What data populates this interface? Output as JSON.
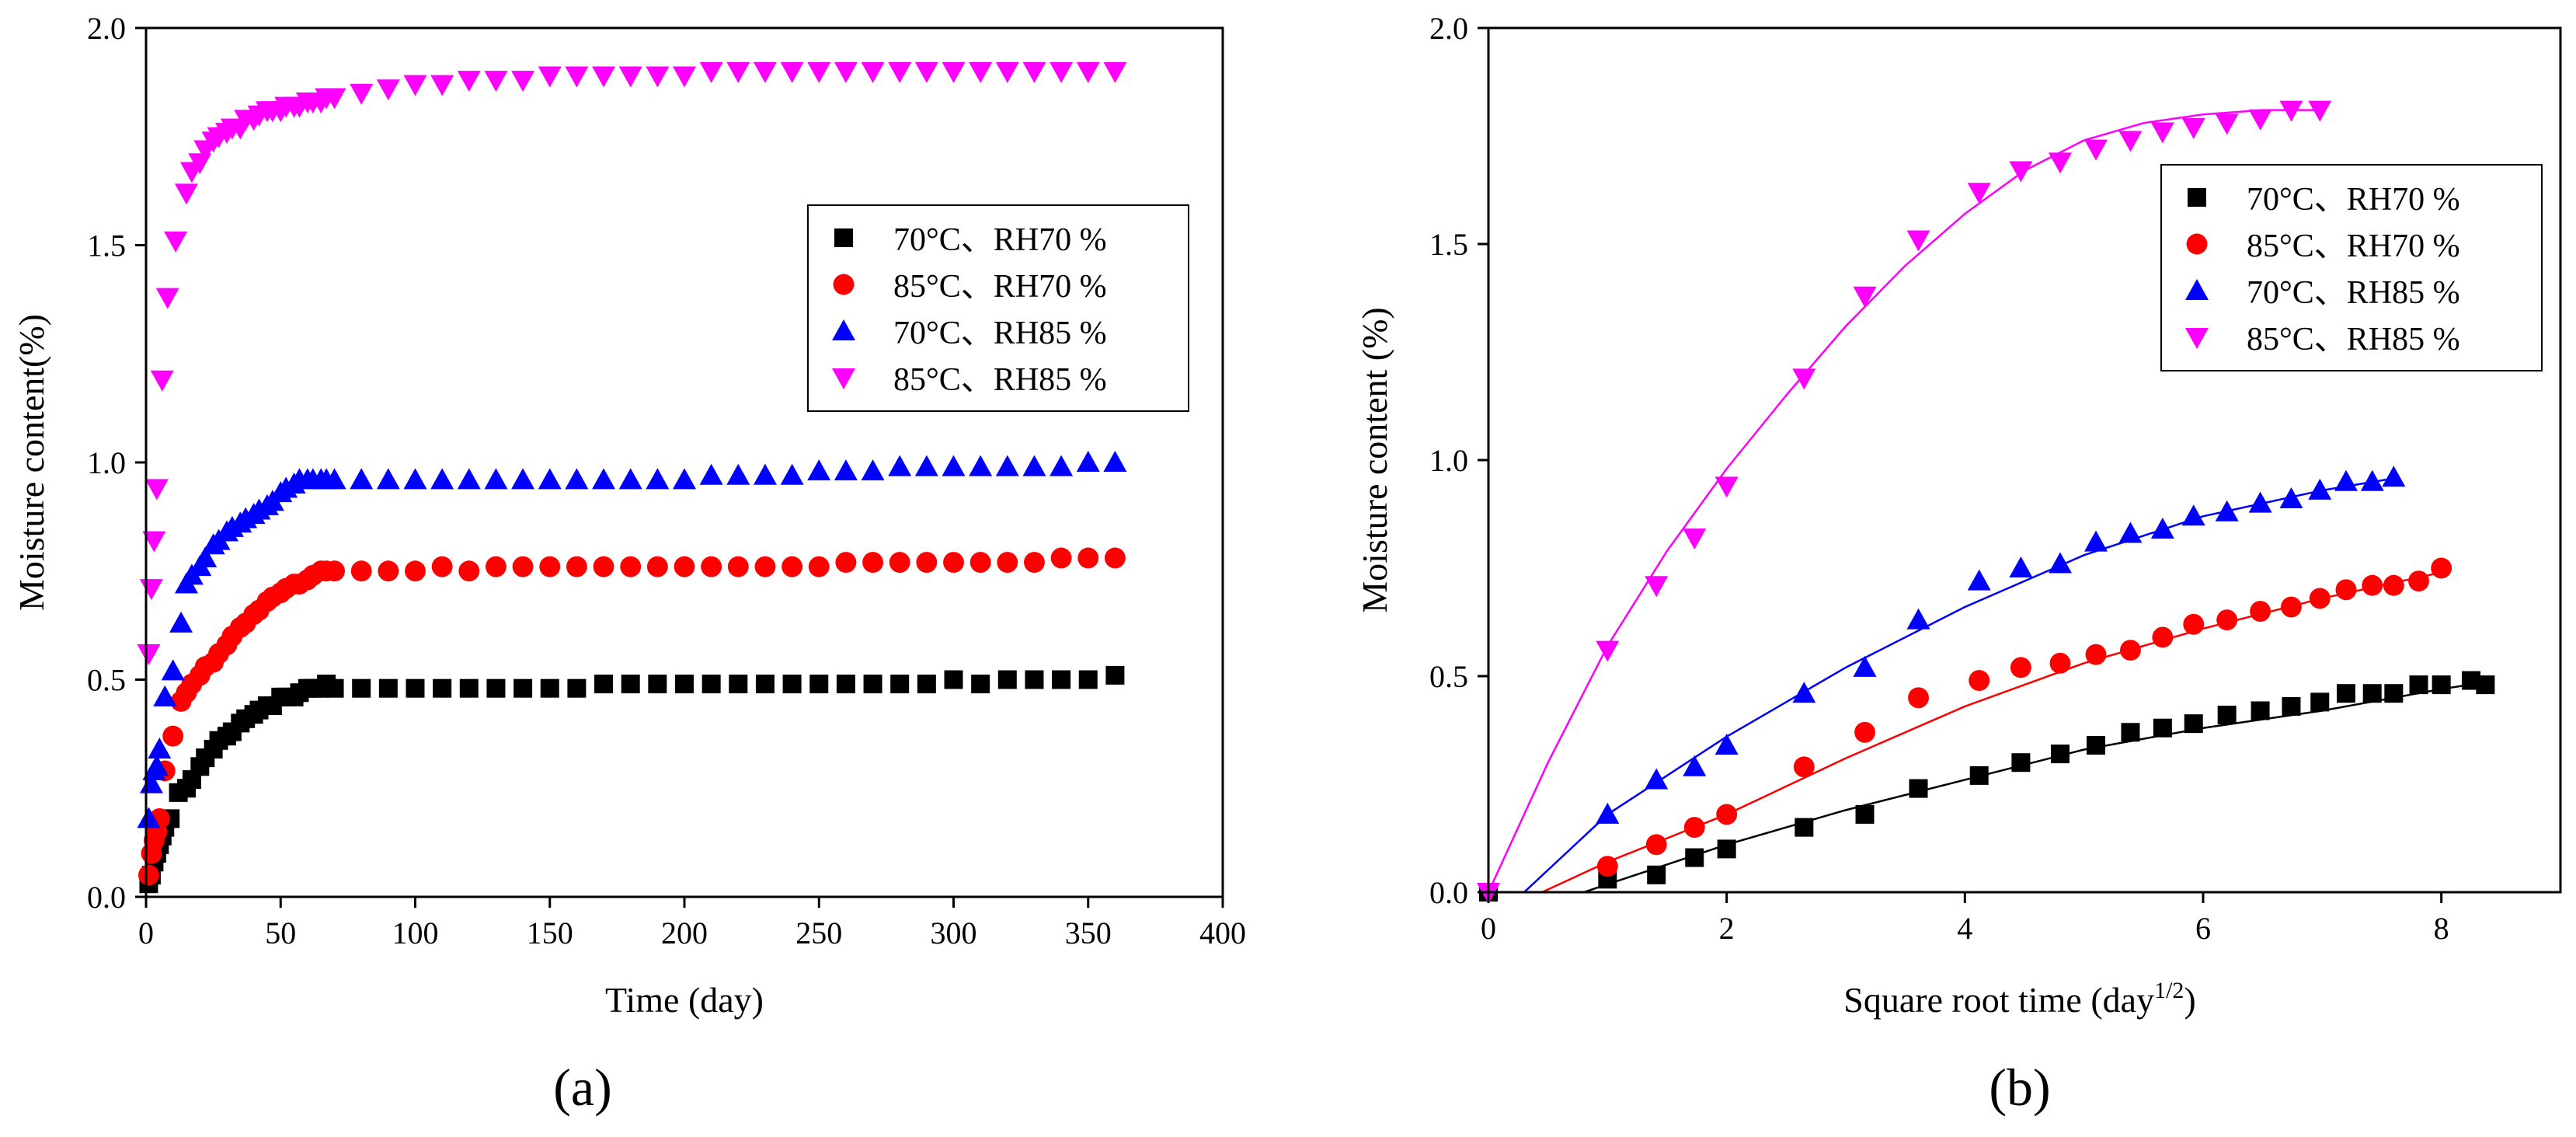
{
  "chart_data": [
    {
      "type": "scatter",
      "panel_label": "(a)",
      "title": "",
      "xlabel": "Time (day)",
      "ylabel": "Moisture content(%)",
      "xlim": [
        0,
        400
      ],
      "ylim": [
        0,
        2.0
      ],
      "xticks": [
        0,
        50,
        100,
        150,
        200,
        250,
        300,
        350,
        400
      ],
      "yticks": [
        0.0,
        0.5,
        1.0,
        1.5,
        2.0
      ],
      "xtick_labels": [
        "0",
        "50",
        "100",
        "150",
        "200",
        "250",
        "300",
        "350",
        "400"
      ],
      "ytick_labels": [
        "0.0",
        "0.5",
        "1.0",
        "1.5",
        "2.0"
      ],
      "grid": false,
      "legend_position": "center-right",
      "series": [
        {
          "name": "70°C、RH70 %",
          "marker": "square",
          "color": "#000000",
          "x": [
            1,
            2,
            3,
            4,
            5,
            6,
            7,
            9,
            12,
            15,
            17,
            20,
            22,
            25,
            27,
            30,
            32,
            35,
            37,
            40,
            42,
            45,
            47,
            50,
            52,
            55,
            57,
            60,
            62,
            65,
            67,
            70,
            80,
            90,
            100,
            110,
            120,
            130,
            140,
            150,
            160,
            170,
            180,
            190,
            200,
            210,
            220,
            230,
            240,
            250,
            260,
            270,
            280,
            290,
            300,
            310,
            320,
            330,
            340,
            350,
            360
          ],
          "y": [
            0.03,
            0.05,
            0.08,
            0.1,
            0.12,
            0.14,
            0.16,
            0.18,
            0.24,
            0.25,
            0.27,
            0.3,
            0.32,
            0.34,
            0.36,
            0.37,
            0.38,
            0.4,
            0.41,
            0.42,
            0.43,
            0.44,
            0.44,
            0.46,
            0.46,
            0.46,
            0.47,
            0.48,
            0.48,
            0.48,
            0.49,
            0.48,
            0.48,
            0.48,
            0.48,
            0.48,
            0.48,
            0.48,
            0.48,
            0.48,
            0.48,
            0.49,
            0.49,
            0.49,
            0.49,
            0.49,
            0.49,
            0.49,
            0.49,
            0.49,
            0.49,
            0.49,
            0.49,
            0.49,
            0.5,
            0.49,
            0.5,
            0.5,
            0.5,
            0.5,
            0.51
          ]
        },
        {
          "name": "85°C、RH70 %",
          "marker": "circle",
          "color": "#ff0000",
          "x": [
            1,
            2,
            3,
            4,
            5,
            7,
            10,
            13,
            15,
            17,
            20,
            22,
            25,
            27,
            30,
            32,
            35,
            37,
            40,
            42,
            45,
            47,
            50,
            52,
            55,
            57,
            60,
            62,
            65,
            67,
            70,
            80,
            90,
            100,
            110,
            120,
            130,
            140,
            150,
            160,
            170,
            180,
            190,
            200,
            210,
            220,
            230,
            240,
            250,
            260,
            270,
            280,
            290,
            300,
            310,
            320,
            330,
            340,
            350,
            360
          ],
          "y": [
            0.05,
            0.1,
            0.13,
            0.15,
            0.18,
            0.29,
            0.37,
            0.45,
            0.47,
            0.49,
            0.51,
            0.53,
            0.54,
            0.56,
            0.58,
            0.6,
            0.62,
            0.63,
            0.65,
            0.66,
            0.68,
            0.69,
            0.7,
            0.71,
            0.72,
            0.72,
            0.73,
            0.74,
            0.75,
            0.75,
            0.75,
            0.75,
            0.75,
            0.75,
            0.76,
            0.75,
            0.76,
            0.76,
            0.76,
            0.76,
            0.76,
            0.76,
            0.76,
            0.76,
            0.76,
            0.76,
            0.76,
            0.76,
            0.76,
            0.77,
            0.77,
            0.77,
            0.77,
            0.77,
            0.77,
            0.77,
            0.77,
            0.78,
            0.78,
            0.78
          ]
        },
        {
          "name": "70°C、RH85 %",
          "marker": "triangle-up",
          "color": "#0000ff",
          "x": [
            1,
            2,
            3,
            4,
            5,
            7,
            10,
            13,
            15,
            17,
            20,
            22,
            25,
            27,
            30,
            32,
            35,
            37,
            40,
            42,
            45,
            47,
            50,
            52,
            55,
            57,
            60,
            62,
            65,
            67,
            70,
            80,
            90,
            100,
            110,
            120,
            130,
            140,
            150,
            160,
            170,
            180,
            190,
            200,
            210,
            220,
            230,
            240,
            250,
            260,
            270,
            280,
            290,
            300,
            310,
            320,
            330,
            340,
            350,
            360
          ],
          "y": [
            0.18,
            0.26,
            0.29,
            0.3,
            0.34,
            0.46,
            0.52,
            0.63,
            0.72,
            0.74,
            0.76,
            0.78,
            0.81,
            0.82,
            0.84,
            0.85,
            0.86,
            0.87,
            0.88,
            0.89,
            0.9,
            0.91,
            0.93,
            0.94,
            0.95,
            0.96,
            0.96,
            0.96,
            0.96,
            0.96,
            0.96,
            0.96,
            0.96,
            0.96,
            0.96,
            0.96,
            0.96,
            0.96,
            0.96,
            0.96,
            0.96,
            0.96,
            0.96,
            0.96,
            0.97,
            0.97,
            0.97,
            0.97,
            0.98,
            0.98,
            0.98,
            0.99,
            0.99,
            0.99,
            0.99,
            0.99,
            0.99,
            0.99,
            1.0,
            1.0
          ]
        },
        {
          "name": "85°C、RH85 %",
          "marker": "triangle-down",
          "color": "#ff00ff",
          "x": [
            1,
            2,
            3,
            4,
            6,
            8,
            11,
            15,
            17,
            20,
            22,
            25,
            27,
            30,
            32,
            35,
            37,
            40,
            42,
            45,
            47,
            50,
            52,
            55,
            57,
            60,
            62,
            65,
            67,
            70,
            80,
            90,
            100,
            110,
            120,
            130,
            140,
            150,
            160,
            170,
            180,
            190,
            200,
            210,
            220,
            230,
            240,
            250,
            260,
            270,
            280,
            290,
            300,
            310,
            320,
            330,
            340,
            350,
            360
          ],
          "y": [
            0.56,
            0.71,
            0.82,
            0.94,
            1.19,
            1.38,
            1.51,
            1.62,
            1.67,
            1.69,
            1.72,
            1.74,
            1.75,
            1.76,
            1.77,
            1.77,
            1.79,
            1.79,
            1.8,
            1.81,
            1.81,
            1.81,
            1.82,
            1.82,
            1.82,
            1.83,
            1.83,
            1.83,
            1.84,
            1.84,
            1.85,
            1.86,
            1.87,
            1.87,
            1.88,
            1.88,
            1.88,
            1.89,
            1.89,
            1.89,
            1.89,
            1.89,
            1.89,
            1.9,
            1.9,
            1.9,
            1.9,
            1.9,
            1.9,
            1.9,
            1.9,
            1.9,
            1.9,
            1.9,
            1.9,
            1.9,
            1.9,
            1.9,
            1.9
          ]
        }
      ]
    },
    {
      "type": "scatter",
      "panel_label": "(b)",
      "title": "",
      "xlabel": "Square root time (day",
      "xlabel_sup": "1/2",
      "xlabel_close": ")",
      "ylabel": "Moisture content (%)",
      "xlim": [
        0,
        9
      ],
      "ylim": [
        0,
        2.0
      ],
      "xticks": [
        0,
        2,
        4,
        6,
        8
      ],
      "yticks": [
        0.0,
        0.5,
        1.0,
        1.5,
        2.0
      ],
      "xtick_labels": [
        "0",
        "2",
        "4",
        "6",
        "8"
      ],
      "ytick_labels": [
        "0.0",
        "0.5",
        "1.0",
        "1.5",
        "2.0"
      ],
      "grid": false,
      "legend_position": "top-right",
      "series": [
        {
          "name": "70°C、RH70 %",
          "marker": "square",
          "color": "#000000",
          "x": [
            0,
            1.0,
            1.41,
            1.73,
            2.0,
            2.65,
            3.16,
            3.61,
            4.12,
            4.47,
            4.8,
            5.1,
            5.39,
            5.66,
            5.92,
            6.2,
            6.48,
            6.74,
            6.98,
            7.2,
            7.42,
            7.6,
            7.81,
            8.0,
            8.25,
            8.37
          ],
          "y": [
            0.0,
            0.03,
            0.04,
            0.08,
            0.1,
            0.15,
            0.18,
            0.24,
            0.27,
            0.3,
            0.32,
            0.34,
            0.37,
            0.38,
            0.39,
            0.41,
            0.42,
            0.43,
            0.44,
            0.46,
            0.46,
            0.46,
            0.48,
            0.48,
            0.49,
            0.48
          ]
        },
        {
          "name": "85°C、RH70 %",
          "marker": "circle",
          "color": "#ff0000",
          "x": [
            1.0,
            1.41,
            1.73,
            2.0,
            2.65,
            3.16,
            3.61,
            4.12,
            4.47,
            4.8,
            5.1,
            5.39,
            5.66,
            5.92,
            6.2,
            6.48,
            6.74,
            6.98,
            7.2,
            7.42,
            7.6,
            7.81,
            8.0
          ],
          "y": [
            0.06,
            0.11,
            0.15,
            0.18,
            0.29,
            0.37,
            0.45,
            0.49,
            0.52,
            0.53,
            0.55,
            0.56,
            0.59,
            0.62,
            0.63,
            0.65,
            0.66,
            0.68,
            0.7,
            0.71,
            0.71,
            0.72,
            0.75
          ]
        },
        {
          "name": "70°C、RH85 %",
          "marker": "triangle-up",
          "color": "#0000ff",
          "x": [
            1.0,
            1.41,
            1.73,
            2.0,
            2.65,
            3.16,
            3.61,
            4.12,
            4.47,
            4.8,
            5.1,
            5.39,
            5.66,
            5.92,
            6.2,
            6.48,
            6.74,
            6.98,
            7.2,
            7.42,
            7.6
          ],
          "y": [
            0.18,
            0.26,
            0.29,
            0.34,
            0.46,
            0.52,
            0.63,
            0.72,
            0.75,
            0.76,
            0.81,
            0.83,
            0.84,
            0.87,
            0.88,
            0.9,
            0.91,
            0.93,
            0.95,
            0.95,
            0.96
          ]
        },
        {
          "name": "85°C、RH85 %",
          "marker": "triangle-down",
          "color": "#ff00ff",
          "x": [
            0.0,
            1.0,
            1.41,
            1.73,
            2.0,
            2.65,
            3.16,
            3.61,
            4.12,
            4.47,
            4.8,
            5.1,
            5.39,
            5.66,
            5.92,
            6.2,
            6.48,
            6.74,
            6.98
          ],
          "y": [
            0.0,
            0.56,
            0.71,
            0.82,
            0.94,
            1.19,
            1.38,
            1.51,
            1.62,
            1.67,
            1.69,
            1.72,
            1.74,
            1.76,
            1.77,
            1.78,
            1.79,
            1.81,
            1.81
          ]
        }
      ],
      "fit_lines": [
        {
          "name": "70°C、RH70 % fit",
          "color": "#000000",
          "x": [
            0.8,
            2,
            3,
            4,
            5,
            6,
            7,
            8,
            8.35
          ],
          "y": [
            0.0,
            0.11,
            0.19,
            0.26,
            0.33,
            0.38,
            0.42,
            0.47,
            0.485
          ]
        },
        {
          "name": "85°C、RH70 % fit",
          "color": "#ff0000",
          "x": [
            0.45,
            1,
            2,
            3,
            4,
            5,
            6,
            7,
            8
          ],
          "y": [
            0.0,
            0.07,
            0.18,
            0.31,
            0.43,
            0.53,
            0.61,
            0.68,
            0.74
          ]
        },
        {
          "name": "70°C、RH85 % fit",
          "color": "#0000ff",
          "x": [
            0.3,
            1,
            2,
            3,
            4,
            5,
            6,
            7,
            7.65
          ],
          "y": [
            0.0,
            0.18,
            0.36,
            0.52,
            0.66,
            0.78,
            0.87,
            0.93,
            0.96
          ]
        },
        {
          "name": "85°C、RH85 % fit",
          "color": "#ff00ff",
          "x": [
            0.0,
            0.5,
            1,
            1.5,
            2,
            2.5,
            3,
            3.5,
            4,
            4.5,
            5,
            5.5,
            6,
            6.5,
            7
          ],
          "y": [
            0.0,
            0.3,
            0.57,
            0.79,
            0.98,
            1.15,
            1.31,
            1.45,
            1.57,
            1.67,
            1.74,
            1.78,
            1.8,
            1.81,
            1.81
          ]
        }
      ]
    }
  ]
}
